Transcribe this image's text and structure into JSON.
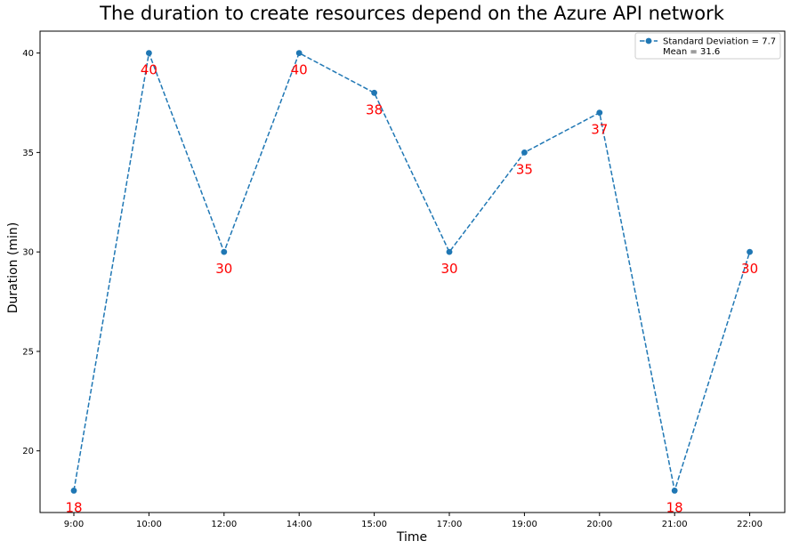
{
  "chart_data": {
    "type": "line",
    "title": "The duration to create resources depend on the Azure API network",
    "xlabel": "Time",
    "ylabel": "Duration (min)",
    "categories": [
      "9:00",
      "10:00",
      "12:00",
      "14:00",
      "15:00",
      "17:00",
      "19:00",
      "20:00",
      "21:00",
      "22:00"
    ],
    "series": [
      {
        "values": [
          18,
          40,
          30,
          40,
          38,
          30,
          35,
          37,
          18,
          30
        ],
        "color": "#1f77b4",
        "line_style": "dashed",
        "marker": "circle"
      }
    ],
    "data_labels": [
      "18",
      "40",
      "30",
      "40",
      "38",
      "30",
      "35",
      "37",
      "18",
      "30"
    ],
    "data_label_color": "#ff0000",
    "yticks": [
      20,
      25,
      30,
      35,
      40
    ],
    "ylim": [
      16.9,
      41.1
    ],
    "grid": false,
    "legend": {
      "placement": "upper right",
      "lines": [
        "Standard Deviation = 7.7",
        "Mean = 31.6"
      ]
    }
  }
}
